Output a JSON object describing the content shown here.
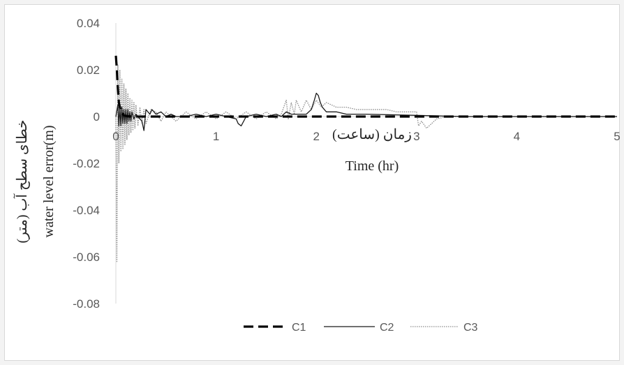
{
  "chart_data": {
    "type": "line",
    "title": "",
    "xlabel": "Time (hr)",
    "xlabel_fa": "زمان (ساعت)",
    "ylabel": "water level error(m)",
    "ylabel_fa": "خطای سطح آب (متر)",
    "xlim": [
      0,
      5
    ],
    "ylim": [
      -0.08,
      0.04
    ],
    "x_ticks": [
      "0",
      "1",
      "2",
      "3",
      "4",
      "5"
    ],
    "y_ticks": [
      "0.04",
      "0.02",
      "0",
      "-0.02",
      "-0.04",
      "-0.06",
      "-0.08"
    ],
    "grid": false,
    "legend_position": "bottom",
    "series": [
      {
        "name": "C1",
        "style": "dashed",
        "color": "#000000",
        "x": [
          0,
          0.01,
          0.02,
          0.03,
          0.05,
          0.08,
          0.12,
          0.2,
          0.3,
          0.5,
          1,
          1.5,
          2,
          2.5,
          3,
          3.5,
          4,
          4.5,
          5
        ],
        "y": [
          0.026,
          0.02,
          0.012,
          0.006,
          0.002,
          0.0005,
          0.0001,
          0,
          0,
          0,
          0,
          0,
          0,
          0,
          0,
          0,
          0,
          0,
          0
        ]
      },
      {
        "name": "C2",
        "style": "solid",
        "color": "#1a1a1a",
        "x": [
          0,
          0.02,
          0.03,
          0.04,
          0.05,
          0.06,
          0.07,
          0.08,
          0.09,
          0.1,
          0.11,
          0.12,
          0.13,
          0.14,
          0.15,
          0.16,
          0.18,
          0.2,
          0.22,
          0.24,
          0.26,
          0.28,
          0.3,
          0.32,
          0.34,
          0.36,
          0.4,
          0.45,
          0.5,
          0.55,
          0.6,
          0.7,
          0.8,
          0.9,
          1.0,
          1.1,
          1.2,
          1.22,
          1.25,
          1.3,
          1.4,
          1.5,
          1.6,
          1.65,
          1.7,
          1.75,
          1.8,
          1.9,
          1.95,
          1.98,
          2.0,
          2.02,
          2.04,
          2.06,
          2.08,
          2.1,
          2.15,
          2.2,
          2.3,
          2.4,
          2.5,
          3.0,
          3.5,
          4.0,
          4.5,
          5.0
        ],
        "y": [
          0,
          0.005,
          -0.004,
          0.004,
          -0.004,
          0.004,
          -0.003,
          0.003,
          -0.003,
          0.003,
          -0.003,
          0.003,
          -0.002,
          0.002,
          -0.002,
          0.002,
          -0.001,
          0.001,
          0,
          -0.001,
          -0.002,
          -0.006,
          0.003,
          0.002,
          0.001,
          0.003,
          0.001,
          0.002,
          0,
          0.001,
          0,
          0,
          0.001,
          0,
          0.001,
          0,
          -0.001,
          -0.003,
          -0.004,
          0,
          0.001,
          0,
          0.001,
          0,
          0.002,
          0.001,
          0.001,
          0.001,
          0.003,
          0.007,
          0.01,
          0.009,
          0.006,
          0.004,
          0.003,
          0.002,
          0.002,
          0.002,
          0.001,
          0.001,
          0.001,
          0.0005,
          0,
          0,
          0,
          0
        ]
      },
      {
        "name": "C3",
        "style": "dotted",
        "color": "#8c8c8c",
        "x": [
          0,
          0.01,
          0.02,
          0.03,
          0.04,
          0.05,
          0.06,
          0.07,
          0.08,
          0.09,
          0.1,
          0.11,
          0.12,
          0.13,
          0.14,
          0.15,
          0.16,
          0.17,
          0.18,
          0.19,
          0.2,
          0.22,
          0.24,
          0.26,
          0.28,
          0.3,
          0.35,
          0.4,
          0.45,
          0.5,
          0.6,
          0.7,
          0.8,
          0.9,
          1.0,
          1.1,
          1.2,
          1.3,
          1.4,
          1.5,
          1.6,
          1.65,
          1.7,
          1.72,
          1.75,
          1.78,
          1.8,
          1.85,
          1.9,
          1.95,
          2.0,
          2.05,
          2.1,
          2.15,
          2.2,
          2.3,
          2.4,
          2.5,
          2.6,
          2.7,
          2.8,
          2.9,
          3.0,
          3.02,
          3.05,
          3.1,
          3.15,
          3.2,
          3.3,
          3.5,
          4.0,
          4.5,
          5.0
        ],
        "y": [
          0,
          -0.062,
          0.022,
          -0.02,
          0.02,
          -0.015,
          0.016,
          -0.014,
          0.014,
          -0.012,
          0.012,
          -0.01,
          0.01,
          -0.008,
          0.008,
          -0.007,
          0.007,
          -0.006,
          0.006,
          -0.005,
          0.005,
          -0.004,
          0.004,
          -0.003,
          0.003,
          -0.003,
          0.003,
          0.002,
          -0.002,
          0.002,
          -0.002,
          0.002,
          -0.001,
          0.002,
          -0.001,
          0.002,
          -0.001,
          0.002,
          -0.001,
          0.002,
          -0.001,
          0.001,
          0.007,
          -0.001,
          0.006,
          0.001,
          0.007,
          0.002,
          0.007,
          0.003,
          0.007,
          0.004,
          0.006,
          0.005,
          0.004,
          0.004,
          0.003,
          0.003,
          0.003,
          0.003,
          0.002,
          0.002,
          0.002,
          -0.004,
          -0.002,
          -0.005,
          -0.003,
          -0.001,
          0,
          0,
          0,
          0,
          0
        ]
      }
    ]
  }
}
